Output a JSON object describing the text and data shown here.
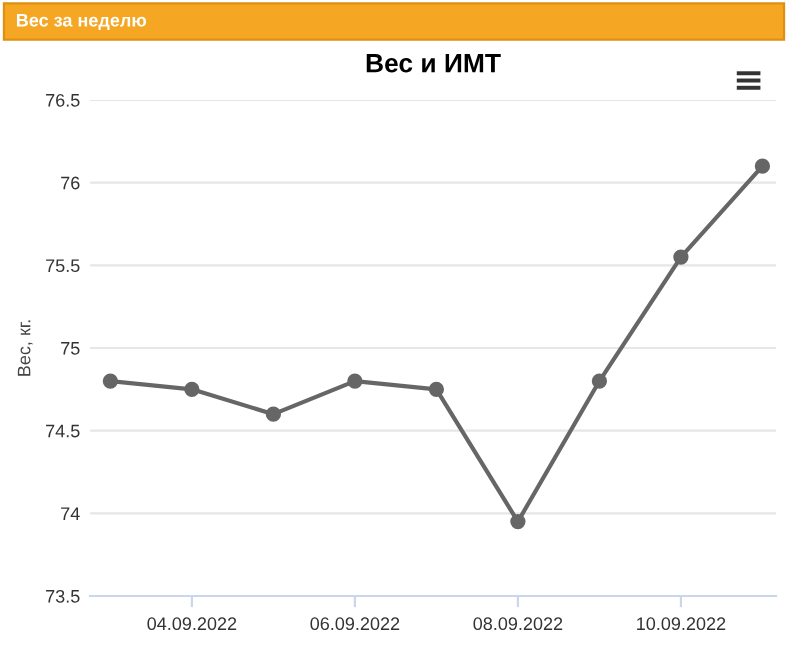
{
  "chart_data": {
    "type": "line",
    "title": "Вес и ИМТ",
    "ylabel": "Вес, кг.",
    "annotations": [
      "Вес за неделю"
    ],
    "x": [
      "2022-09-03",
      "2022-09-04",
      "2022-09-05",
      "2022-09-06",
      "2022-09-07",
      "2022-09-08",
      "2022-09-09",
      "2022-09-10",
      "2022-09-11"
    ],
    "series": [
      {
        "color": "#666666",
        "values": [
          74.8,
          74.75,
          74.6,
          74.8,
          74.75,
          73.95,
          74.8,
          75.55,
          76.1
        ]
      }
    ],
    "xlim": [
      "2022-09-02T18:00",
      "2022-09-11T04:00"
    ],
    "xticks": [
      {
        "value": "2022-09-04",
        "label": "04.09.2022"
      },
      {
        "value": "2022-09-06",
        "label": "06.09.2022"
      },
      {
        "value": "2022-09-08",
        "label": "08.09.2022"
      },
      {
        "value": "2022-09-10",
        "label": "10.09.2022"
      }
    ],
    "ylim": [
      73.5,
      76.5
    ],
    "yticks": [
      73.5,
      74,
      74.5,
      75,
      75.5,
      76,
      76.5
    ],
    "grid": "y",
    "marker": "circle",
    "line_style": "solid"
  }
}
